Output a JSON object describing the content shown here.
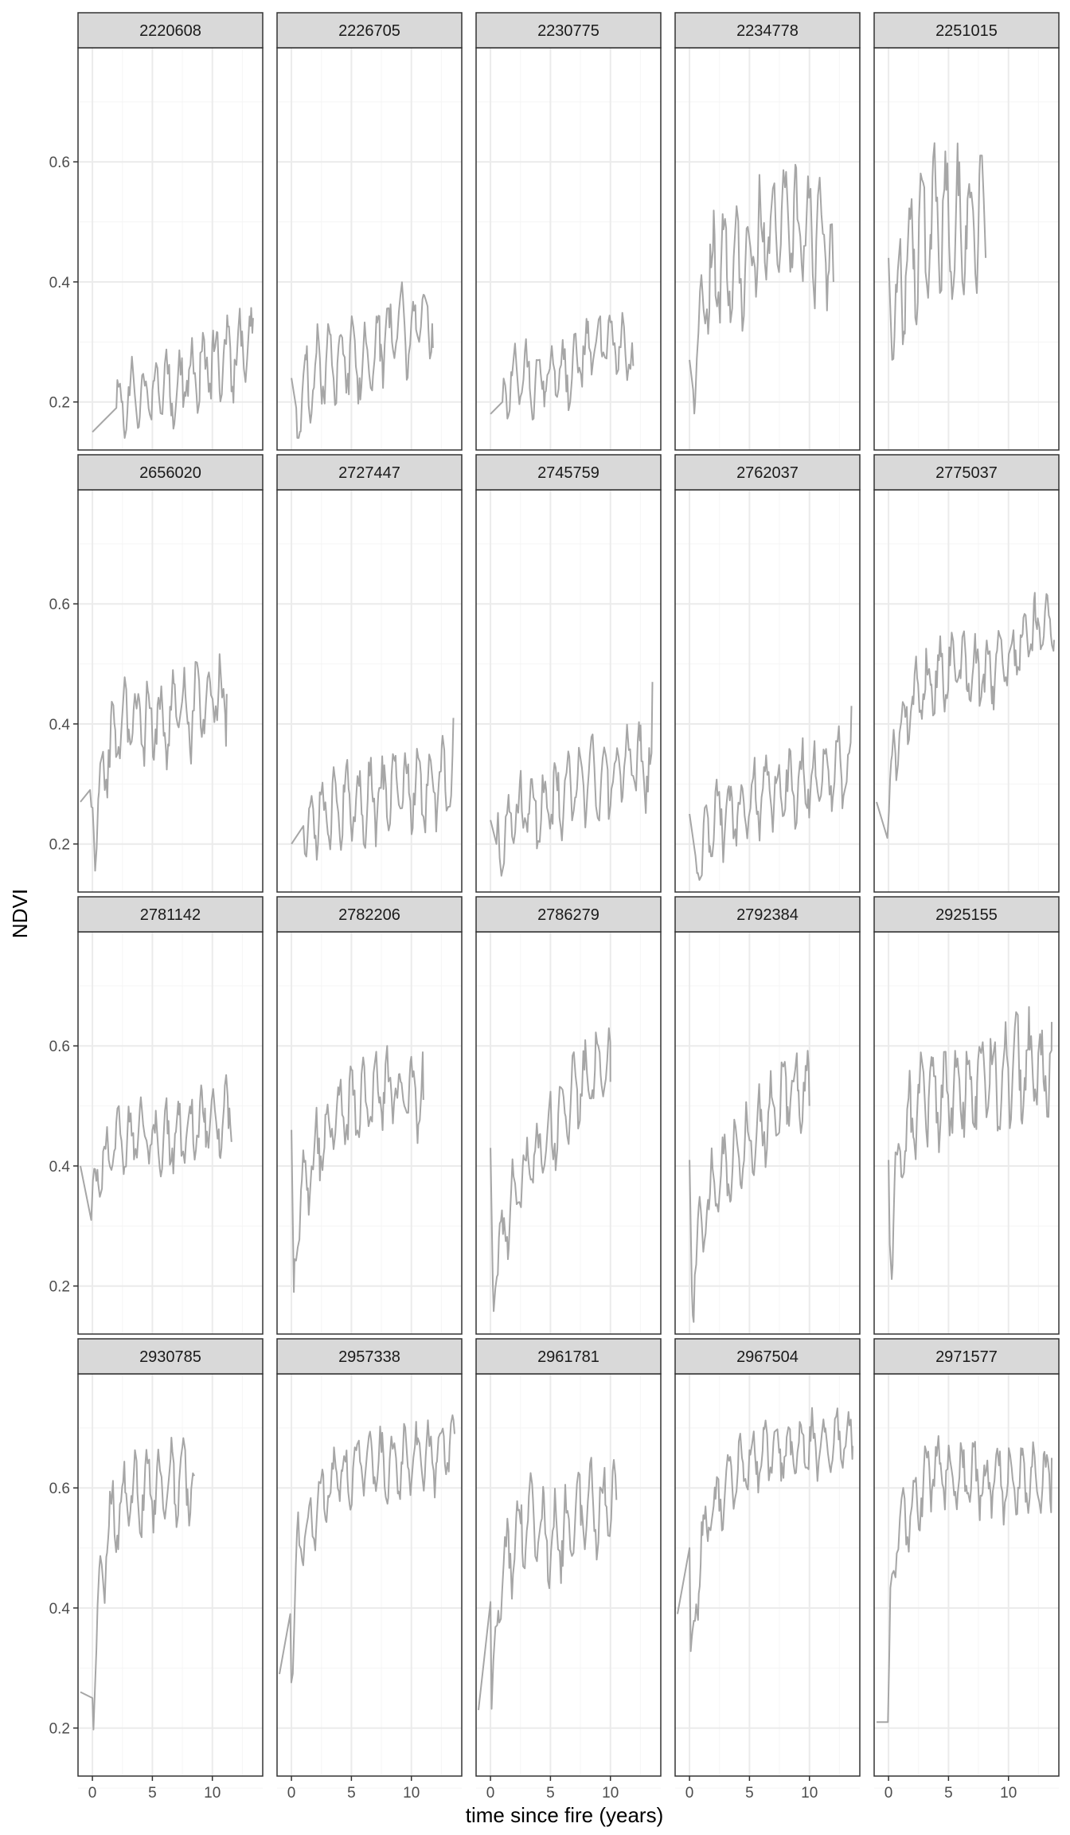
{
  "chart_data": {
    "type": "line",
    "layout": "facet_wrap",
    "ncol": 5,
    "xlabel": "time since fire (years)",
    "ylabel": "NDVI",
    "xlim": [
      -1.2,
      14.2
    ],
    "ylim": [
      0.12,
      0.79
    ],
    "x_ticks": [
      0,
      5,
      10
    ],
    "y_ticks": [
      0.2,
      0.4,
      0.6
    ],
    "x_tick_labels": [
      "0",
      "5",
      "10"
    ],
    "y_tick_labels": [
      "0.2",
      "0.4",
      "0.6"
    ],
    "grid": true,
    "colors": {
      "line": "#a6a6a6",
      "strip_bg": "#d9d9d9",
      "panel_border": "#333333",
      "grid_major": "#ebebeb",
      "grid_minor": "#f5f5f5"
    },
    "panels": [
      {
        "id": "2220608",
        "start": [
          0.0,
          0.15
        ],
        "end": [
          13.4,
          0.34
        ],
        "ctrl": [
          [
            2,
            0.19
          ],
          [
            4,
            0.22
          ],
          [
            6,
            0.22
          ],
          [
            8,
            0.24
          ],
          [
            10,
            0.27
          ],
          [
            12,
            0.28
          ]
        ],
        "amp": 0.05
      },
      {
        "id": "2226705",
        "start": [
          0.0,
          0.24
        ],
        "end": [
          11.8,
          0.29
        ],
        "ctrl": [
          [
            0.4,
            0.19
          ],
          [
            2,
            0.26
          ],
          [
            4,
            0.27
          ],
          [
            6,
            0.28
          ],
          [
            8,
            0.3
          ],
          [
            10,
            0.33
          ],
          [
            11.5,
            0.35
          ]
        ],
        "amp": 0.055
      },
      {
        "id": "2230775",
        "start": [
          0.0,
          0.18
        ],
        "end": [
          11.9,
          0.26
        ],
        "ctrl": [
          [
            1,
            0.2
          ],
          [
            2,
            0.25
          ],
          [
            4,
            0.24
          ],
          [
            6,
            0.25
          ],
          [
            8,
            0.28
          ],
          [
            10,
            0.3
          ],
          [
            11.5,
            0.28
          ]
        ],
        "amp": 0.045
      },
      {
        "id": "2234778",
        "start": [
          0.0,
          0.27
        ],
        "end": [
          12.0,
          0.4
        ],
        "ctrl": [
          [
            0.3,
            0.22
          ],
          [
            1,
            0.35
          ],
          [
            2,
            0.42
          ],
          [
            4,
            0.43
          ],
          [
            6,
            0.47
          ],
          [
            8,
            0.49
          ],
          [
            10,
            0.48
          ],
          [
            11.5,
            0.47
          ]
        ],
        "amp": 0.075
      },
      {
        "id": "2251015",
        "start": [
          0.0,
          0.44
        ],
        "end": [
          8.1,
          0.44
        ],
        "ctrl": [
          [
            0.3,
            0.27
          ],
          [
            1,
            0.4
          ],
          [
            2,
            0.45
          ],
          [
            3,
            0.48
          ],
          [
            4,
            0.5
          ],
          [
            5,
            0.5
          ],
          [
            6,
            0.5
          ],
          [
            7,
            0.5
          ],
          [
            7.8,
            0.52
          ]
        ],
        "amp": 0.085
      },
      {
        "id": "2656020",
        "start": [
          -1.0,
          0.27
        ],
        "end": [
          11.2,
          0.45
        ],
        "ctrl": [
          [
            -0.2,
            0.29
          ],
          [
            0.2,
            0.22
          ],
          [
            1,
            0.33
          ],
          [
            2,
            0.39
          ],
          [
            4,
            0.4
          ],
          [
            6,
            0.41
          ],
          [
            8,
            0.42
          ],
          [
            10,
            0.44
          ]
        ],
        "amp": 0.055
      },
      {
        "id": "2727447",
        "start": [
          0.0,
          0.2
        ],
        "end": [
          13.5,
          0.41
        ],
        "ctrl": [
          [
            1,
            0.23
          ],
          [
            2,
            0.24
          ],
          [
            4,
            0.26
          ],
          [
            6,
            0.27
          ],
          [
            8,
            0.28
          ],
          [
            10,
            0.29
          ],
          [
            12,
            0.3
          ]
        ],
        "amp": 0.05
      },
      {
        "id": "2745759",
        "start": [
          0.0,
          0.24
        ],
        "end": [
          13.5,
          0.47
        ],
        "ctrl": [
          [
            0.5,
            0.2
          ],
          [
            2,
            0.25
          ],
          [
            4,
            0.26
          ],
          [
            6,
            0.28
          ],
          [
            8,
            0.3
          ],
          [
            10,
            0.31
          ],
          [
            12,
            0.33
          ]
        ],
        "amp": 0.05
      },
      {
        "id": "2762037",
        "start": [
          0.0,
          0.25
        ],
        "end": [
          13.5,
          0.43
        ],
        "ctrl": [
          [
            0.5,
            0.18
          ],
          [
            2,
            0.24
          ],
          [
            4,
            0.26
          ],
          [
            6,
            0.28
          ],
          [
            8,
            0.3
          ],
          [
            10,
            0.31
          ],
          [
            12,
            0.33
          ]
        ],
        "amp": 0.05
      },
      {
        "id": "2775037",
        "start": [
          -1.0,
          0.27
        ],
        "end": [
          13.8,
          0.54
        ],
        "ctrl": [
          [
            -0.1,
            0.21
          ],
          [
            0.1,
            0.27
          ],
          [
            0.5,
            0.36
          ],
          [
            2,
            0.44
          ],
          [
            4,
            0.48
          ],
          [
            6,
            0.49
          ],
          [
            8,
            0.48
          ],
          [
            10,
            0.51
          ],
          [
            12,
            0.55
          ],
          [
            13.5,
            0.57
          ]
        ],
        "amp": 0.045
      },
      {
        "id": "2781142",
        "start": [
          -1.0,
          0.4
        ],
        "end": [
          11.6,
          0.44
        ],
        "ctrl": [
          [
            -0.1,
            0.31
          ],
          [
            0.5,
            0.39
          ],
          [
            2,
            0.43
          ],
          [
            4,
            0.45
          ],
          [
            6,
            0.44
          ],
          [
            8,
            0.46
          ],
          [
            10,
            0.48
          ],
          [
            11.5,
            0.48
          ]
        ],
        "amp": 0.045
      },
      {
        "id": "2782206",
        "start": [
          0.0,
          0.46
        ],
        "end": [
          11.0,
          0.51
        ],
        "ctrl": [
          [
            0.2,
            0.19
          ],
          [
            0.5,
            0.3
          ],
          [
            1.5,
            0.4
          ],
          [
            3,
            0.46
          ],
          [
            5,
            0.5
          ],
          [
            7,
            0.52
          ],
          [
            9,
            0.53
          ],
          [
            10.5,
            0.52
          ]
        ],
        "amp": 0.05
      },
      {
        "id": "2786279",
        "start": [
          0.0,
          0.43
        ],
        "end": [
          10.0,
          0.54
        ],
        "ctrl": [
          [
            0.2,
            0.2
          ],
          [
            1,
            0.28
          ],
          [
            2,
            0.35
          ],
          [
            4,
            0.42
          ],
          [
            6,
            0.48
          ],
          [
            8,
            0.55
          ],
          [
            9.5,
            0.58
          ]
        ],
        "amp": 0.05
      },
      {
        "id": "2792384",
        "start": [
          0.0,
          0.41
        ],
        "end": [
          10.0,
          0.5
        ],
        "ctrl": [
          [
            0.2,
            0.19
          ],
          [
            1,
            0.3
          ],
          [
            2,
            0.36
          ],
          [
            4,
            0.42
          ],
          [
            6,
            0.47
          ],
          [
            8,
            0.52
          ],
          [
            9.5,
            0.53
          ]
        ],
        "amp": 0.05
      },
      {
        "id": "2925155",
        "start": [
          0.0,
          0.41
        ],
        "end": [
          13.6,
          0.64
        ],
        "ctrl": [
          [
            0.1,
            0.27
          ],
          [
            1,
            0.42
          ],
          [
            3,
            0.52
          ],
          [
            5,
            0.53
          ],
          [
            7,
            0.54
          ],
          [
            9,
            0.55
          ],
          [
            11,
            0.56
          ],
          [
            13,
            0.56
          ]
        ],
        "amp": 0.065
      },
      {
        "id": "2930785",
        "start": [
          -1.0,
          0.26
        ],
        "end": [
          8.5,
          0.62
        ],
        "ctrl": [
          [
            0.0,
            0.25
          ],
          [
            0.5,
            0.4
          ],
          [
            1.5,
            0.55
          ],
          [
            3,
            0.59
          ],
          [
            5,
            0.6
          ],
          [
            7,
            0.61
          ],
          [
            8.2,
            0.61
          ]
        ],
        "amp": 0.05
      },
      {
        "id": "2957338",
        "start": [
          -1.0,
          0.29
        ],
        "end": [
          13.6,
          0.69
        ],
        "ctrl": [
          [
            -0.1,
            0.39
          ],
          [
            0.05,
            0.29
          ],
          [
            0.5,
            0.5
          ],
          [
            2,
            0.57
          ],
          [
            4,
            0.62
          ],
          [
            6,
            0.64
          ],
          [
            8,
            0.64
          ],
          [
            10,
            0.64
          ],
          [
            12,
            0.65
          ],
          [
            13.4,
            0.66
          ]
        ],
        "amp": 0.045
      },
      {
        "id": "2961781",
        "start": [
          -1.0,
          0.23
        ],
        "end": [
          10.5,
          0.58
        ],
        "ctrl": [
          [
            0.0,
            0.41
          ],
          [
            0.1,
            0.22
          ],
          [
            0.8,
            0.43
          ],
          [
            2,
            0.52
          ],
          [
            3,
            0.55
          ],
          [
            4,
            0.52
          ],
          [
            6,
            0.52
          ],
          [
            8,
            0.55
          ],
          [
            10,
            0.57
          ]
        ],
        "amp": 0.06
      },
      {
        "id": "2967504",
        "start": [
          -1.0,
          0.39
        ],
        "end": [
          13.6,
          0.67
        ],
        "ctrl": [
          [
            0.0,
            0.5
          ],
          [
            0.1,
            0.28
          ],
          [
            1,
            0.52
          ],
          [
            3,
            0.6
          ],
          [
            5,
            0.65
          ],
          [
            7,
            0.66
          ],
          [
            9,
            0.67
          ],
          [
            11,
            0.67
          ],
          [
            13,
            0.68
          ]
        ],
        "amp": 0.04
      },
      {
        "id": "2971577",
        "start": [
          -1.0,
          0.21
        ],
        "end": [
          13.6,
          0.65
        ],
        "ctrl": [
          [
            -0.05,
            0.21
          ],
          [
            0.15,
            0.37
          ],
          [
            0.5,
            0.5
          ],
          [
            2,
            0.58
          ],
          [
            4,
            0.63
          ],
          [
            6,
            0.62
          ],
          [
            8,
            0.61
          ],
          [
            10,
            0.61
          ],
          [
            12,
            0.61
          ],
          [
            13.4,
            0.62
          ]
        ],
        "amp": 0.045
      }
    ]
  }
}
